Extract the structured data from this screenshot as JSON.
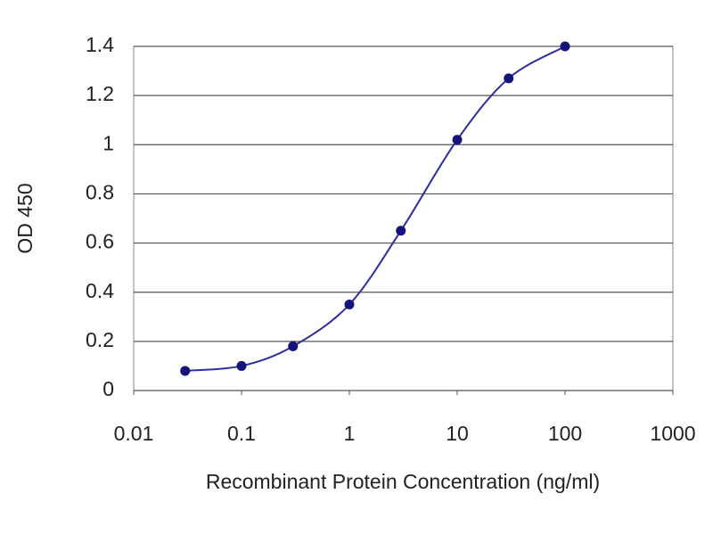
{
  "chart_data": {
    "type": "line",
    "x": [
      0.03,
      0.1,
      0.3,
      1,
      3,
      10,
      30,
      100
    ],
    "values": [
      0.08,
      0.1,
      0.18,
      0.35,
      0.65,
      1.02,
      1.27,
      1.4
    ],
    "color": "#2e2e9e",
    "marker_color": "#14147a",
    "xlabel": "Recombinant Protein Concentration (ng/ml)",
    "ylabel": "OD 450",
    "xscale": "log",
    "xlim": [
      0.01,
      1000
    ],
    "xticks": [
      0.01,
      0.1,
      1,
      10,
      100,
      1000
    ],
    "ylim": [
      0,
      1.4
    ],
    "yticks": [
      0,
      0.2,
      0.4,
      0.6,
      0.8,
      1,
      1.2,
      1.4
    ],
    "grid": true
  }
}
